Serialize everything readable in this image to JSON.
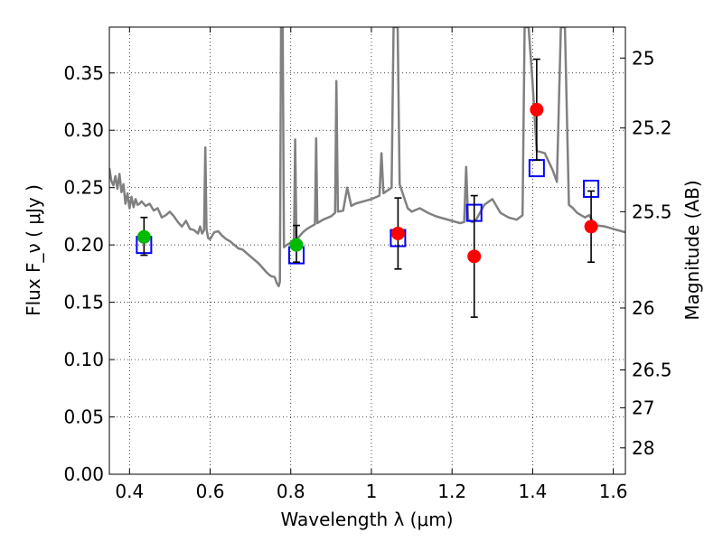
{
  "chart_data": {
    "type": "scatter",
    "title": "",
    "xlabel": "Wavelength  λ (μm)",
    "ylabel": "Flux  F_ν  ( μJy )",
    "y2label": "Magnitude (AB)",
    "xlim": [
      0.35,
      1.63
    ],
    "ylim": [
      0,
      0.39
    ],
    "grid": true,
    "x_ticks": [
      {
        "value": 0.4,
        "label": "0.4"
      },
      {
        "value": 0.6,
        "label": "0.6"
      },
      {
        "value": 0.8,
        "label": "0.8"
      },
      {
        "value": 1.0,
        "label": "1"
      },
      {
        "value": 1.2,
        "label": "1.2"
      },
      {
        "value": 1.4,
        "label": "1.4"
      },
      {
        "value": 1.6,
        "label": "1.6"
      }
    ],
    "y_ticks": [
      {
        "value": 0.0,
        "label": "0.00"
      },
      {
        "value": 0.05,
        "label": "0.05"
      },
      {
        "value": 0.1,
        "label": "0.10"
      },
      {
        "value": 0.15,
        "label": "0.15"
      },
      {
        "value": 0.2,
        "label": "0.20"
      },
      {
        "value": 0.25,
        "label": "0.25"
      },
      {
        "value": 0.3,
        "label": "0.30"
      },
      {
        "value": 0.35,
        "label": "0.35"
      }
    ],
    "y2_ticks": [
      {
        "label": "25",
        "flux": 0.363
      },
      {
        "label": "25.2",
        "flux": 0.302
      },
      {
        "label": "25.5",
        "flux": 0.229
      },
      {
        "label": "26",
        "flux": 0.145
      },
      {
        "label": "26.5",
        "flux": 0.091
      },
      {
        "label": "27",
        "flux": 0.058
      },
      {
        "label": "28",
        "flux": 0.023
      }
    ],
    "spectrum": {
      "color": "#808080",
      "points": [
        [
          0.35,
          0.267
        ],
        [
          0.355,
          0.256
        ],
        [
          0.36,
          0.252
        ],
        [
          0.365,
          0.26
        ],
        [
          0.37,
          0.249
        ],
        [
          0.375,
          0.262
        ],
        [
          0.38,
          0.246
        ],
        [
          0.385,
          0.253
        ],
        [
          0.39,
          0.236
        ],
        [
          0.395,
          0.245
        ],
        [
          0.4,
          0.232
        ],
        [
          0.405,
          0.242
        ],
        [
          0.41,
          0.233
        ],
        [
          0.415,
          0.24
        ],
        [
          0.42,
          0.235
        ],
        [
          0.425,
          0.236
        ],
        [
          0.43,
          0.238
        ],
        [
          0.44,
          0.234
        ],
        [
          0.45,
          0.236
        ],
        [
          0.46,
          0.23
        ],
        [
          0.47,
          0.232
        ],
        [
          0.48,
          0.224
        ],
        [
          0.49,
          0.226
        ],
        [
          0.5,
          0.229
        ],
        [
          0.51,
          0.225
        ],
        [
          0.52,
          0.22
        ],
        [
          0.53,
          0.216
        ],
        [
          0.54,
          0.221
        ],
        [
          0.55,
          0.214
        ],
        [
          0.56,
          0.213
        ],
        [
          0.57,
          0.21
        ],
        [
          0.575,
          0.216
        ],
        [
          0.58,
          0.21
        ],
        [
          0.585,
          0.213
        ],
        [
          0.588,
          0.285
        ],
        [
          0.591,
          0.214
        ],
        [
          0.595,
          0.206
        ],
        [
          0.6,
          0.205
        ],
        [
          0.61,
          0.211
        ],
        [
          0.62,
          0.212
        ],
        [
          0.63,
          0.208
        ],
        [
          0.64,
          0.205
        ],
        [
          0.65,
          0.203
        ],
        [
          0.66,
          0.2
        ],
        [
          0.67,
          0.197
        ],
        [
          0.68,
          0.196
        ],
        [
          0.69,
          0.193
        ],
        [
          0.7,
          0.19
        ],
        [
          0.71,
          0.187
        ],
        [
          0.72,
          0.184
        ],
        [
          0.73,
          0.18
        ],
        [
          0.74,
          0.176
        ],
        [
          0.75,
          0.173
        ],
        [
          0.76,
          0.172
        ],
        [
          0.765,
          0.167
        ],
        [
          0.77,
          0.164
        ],
        [
          0.773,
          0.168
        ],
        [
          0.776,
          0.39
        ],
        [
          0.78,
          0.39
        ],
        [
          0.783,
          0.198
        ],
        [
          0.79,
          0.2
        ],
        [
          0.8,
          0.202
        ],
        [
          0.808,
          0.205
        ],
        [
          0.811,
          0.292
        ],
        [
          0.814,
          0.205
        ],
        [
          0.82,
          0.207
        ],
        [
          0.83,
          0.211
        ],
        [
          0.84,
          0.214
        ],
        [
          0.85,
          0.216
        ],
        [
          0.86,
          0.218
        ],
        [
          0.863,
          0.293
        ],
        [
          0.866,
          0.219
        ],
        [
          0.88,
          0.222
        ],
        [
          0.9,
          0.225
        ],
        [
          0.91,
          0.228
        ],
        [
          0.913,
          0.343
        ],
        [
          0.917,
          0.229
        ],
        [
          0.93,
          0.23
        ],
        [
          0.94,
          0.25
        ],
        [
          0.95,
          0.234
        ],
        [
          0.96,
          0.236
        ],
        [
          0.98,
          0.238
        ],
        [
          1.0,
          0.24
        ],
        [
          1.02,
          0.243
        ],
        [
          1.025,
          0.28
        ],
        [
          1.03,
          0.245
        ],
        [
          1.05,
          0.25
        ],
        [
          1.055,
          0.39
        ],
        [
          1.065,
          0.39
        ],
        [
          1.07,
          0.253
        ],
        [
          1.09,
          0.232
        ],
        [
          1.1,
          0.229
        ],
        [
          1.12,
          0.232
        ],
        [
          1.14,
          0.228
        ],
        [
          1.16,
          0.225
        ],
        [
          1.18,
          0.223
        ],
        [
          1.2,
          0.221
        ],
        [
          1.22,
          0.219
        ],
        [
          1.23,
          0.22
        ],
        [
          1.235,
          0.268
        ],
        [
          1.24,
          0.222
        ],
        [
          1.25,
          0.22
        ],
        [
          1.26,
          0.222
        ],
        [
          1.28,
          0.235
        ],
        [
          1.3,
          0.24
        ],
        [
          1.32,
          0.228
        ],
        [
          1.34,
          0.224
        ],
        [
          1.36,
          0.222
        ],
        [
          1.375,
          0.226
        ],
        [
          1.38,
          0.39
        ],
        [
          1.39,
          0.39
        ],
        [
          1.4,
          0.34
        ],
        [
          1.41,
          0.282
        ],
        [
          1.43,
          0.28
        ],
        [
          1.45,
          0.265
        ],
        [
          1.46,
          0.255
        ],
        [
          1.47,
          0.39
        ],
        [
          1.48,
          0.39
        ],
        [
          1.49,
          0.235
        ],
        [
          1.5,
          0.232
        ],
        [
          1.51,
          0.228
        ],
        [
          1.52,
          0.226
        ],
        [
          1.53,
          0.224
        ],
        [
          1.54,
          0.226
        ],
        [
          1.55,
          0.22
        ],
        [
          1.56,
          0.217
        ],
        [
          1.58,
          0.216
        ],
        [
          1.6,
          0.214
        ],
        [
          1.63,
          0.211
        ]
      ]
    },
    "series": [
      {
        "marker": "open-square",
        "color": "#0000ff",
        "points": [
          {
            "x": 0.436,
            "y": 0.2
          },
          {
            "x": 0.814,
            "y": 0.191
          },
          {
            "x": 1.066,
            "y": 0.206
          },
          {
            "x": 1.255,
            "y": 0.228
          },
          {
            "x": 1.41,
            "y": 0.267
          },
          {
            "x": 1.545,
            "y": 0.249
          }
        ]
      },
      {
        "marker": "filled-circle",
        "color": "#00bb00",
        "points": [
          {
            "x": 0.436,
            "y": 0.207,
            "yerr": [
              0.016,
              0.017
            ]
          },
          {
            "x": 0.814,
            "y": 0.2,
            "yerr": [
              0.015,
              0.017
            ]
          }
        ]
      },
      {
        "marker": "filled-circle",
        "color": "#ff0000",
        "points": [
          {
            "x": 1.066,
            "y": 0.21,
            "yerr": [
              0.031,
              0.031
            ]
          },
          {
            "x": 1.255,
            "y": 0.19,
            "yerr": [
              0.053,
              0.053
            ]
          },
          {
            "x": 1.41,
            "y": 0.318,
            "yerr": [
              0.044,
              0.044
            ]
          },
          {
            "x": 1.545,
            "y": 0.216,
            "yerr": [
              0.031,
              0.031
            ]
          }
        ]
      }
    ]
  }
}
